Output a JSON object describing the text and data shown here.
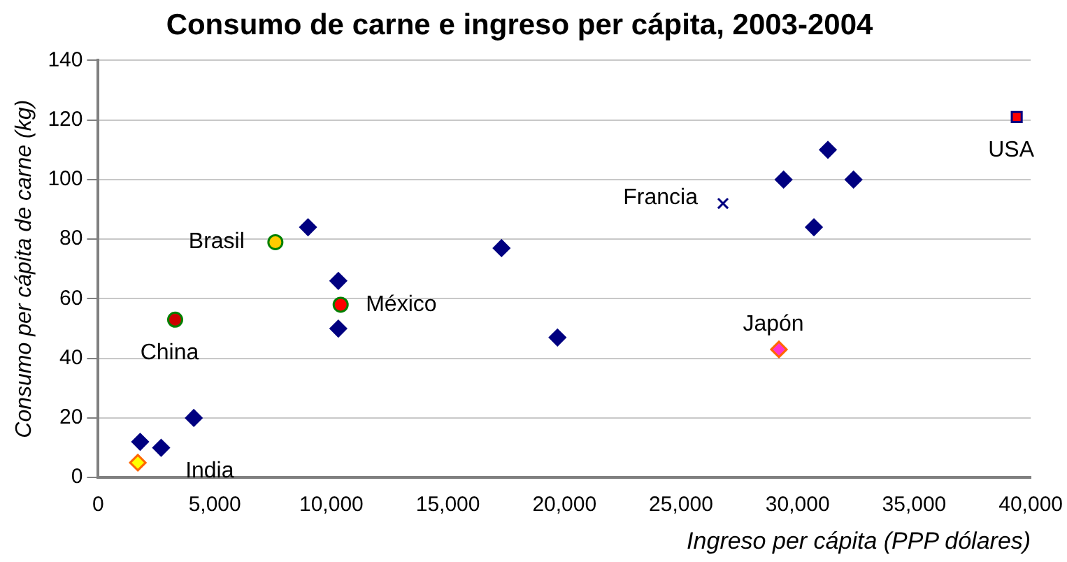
{
  "chart_data": {
    "type": "scatter",
    "title": "Consumo de carne e ingreso per cápita, 2003-2004",
    "xlabel": "Ingreso per cápita (PPP dólares)",
    "ylabel": "Consumo per cápita de carne (kg)",
    "xlim": [
      0,
      40000
    ],
    "ylim": [
      0,
      140
    ],
    "xticks": [
      0,
      {
        "value": 5000,
        "label": "5,000"
      },
      {
        "value": 10000,
        "label": "10,000"
      },
      {
        "value": 15000,
        "label": "15,000"
      },
      {
        "value": 20000,
        "label": "20,000"
      },
      {
        "value": 25000,
        "label": "25,000"
      },
      {
        "value": 30000,
        "label": "30,000"
      },
      {
        "value": 35000,
        "label": "35,000"
      },
      {
        "value": 40000,
        "label": "40,000"
      }
    ],
    "yticks": [
      0,
      20,
      40,
      60,
      80,
      100,
      120,
      140
    ],
    "grid": "y",
    "legend": false,
    "series": [
      {
        "color": "#000080",
        "marker": "diamond",
        "x": [
          9000,
          17300,
          10300,
          10300,
          4100,
          1800,
          2700,
          19700,
          31300,
          29400,
          32400,
          30700
        ],
        "values": [
          84,
          77,
          66,
          50,
          20,
          12,
          10,
          47,
          110,
          100,
          100,
          84
        ]
      },
      {
        "name": "Brasil",
        "color": "#ffcc00",
        "marker": "circle",
        "x": [
          7600
        ],
        "values": [
          79
        ]
      },
      {
        "name": "México",
        "color": "#ff0000",
        "marker": "circle",
        "x": [
          10400
        ],
        "values": [
          58
        ]
      },
      {
        "name": "China",
        "color": "#cc0000",
        "marker": "circle",
        "x": [
          3300
        ],
        "values": [
          53
        ]
      },
      {
        "name": "India",
        "color": "#ffff00",
        "marker": "diamond",
        "x": [
          1700
        ],
        "values": [
          5
        ]
      },
      {
        "name": "Japón",
        "color": "#ff33cc",
        "marker": "diamond",
        "x": [
          29200
        ],
        "values": [
          43
        ]
      },
      {
        "name": "Francia",
        "color": "#000080",
        "marker": "cross",
        "x": [
          26800
        ],
        "values": [
          92
        ]
      },
      {
        "name": "USA",
        "color": "#ff0000",
        "marker": "square",
        "x": [
          39400
        ],
        "values": [
          121
        ]
      }
    ]
  }
}
